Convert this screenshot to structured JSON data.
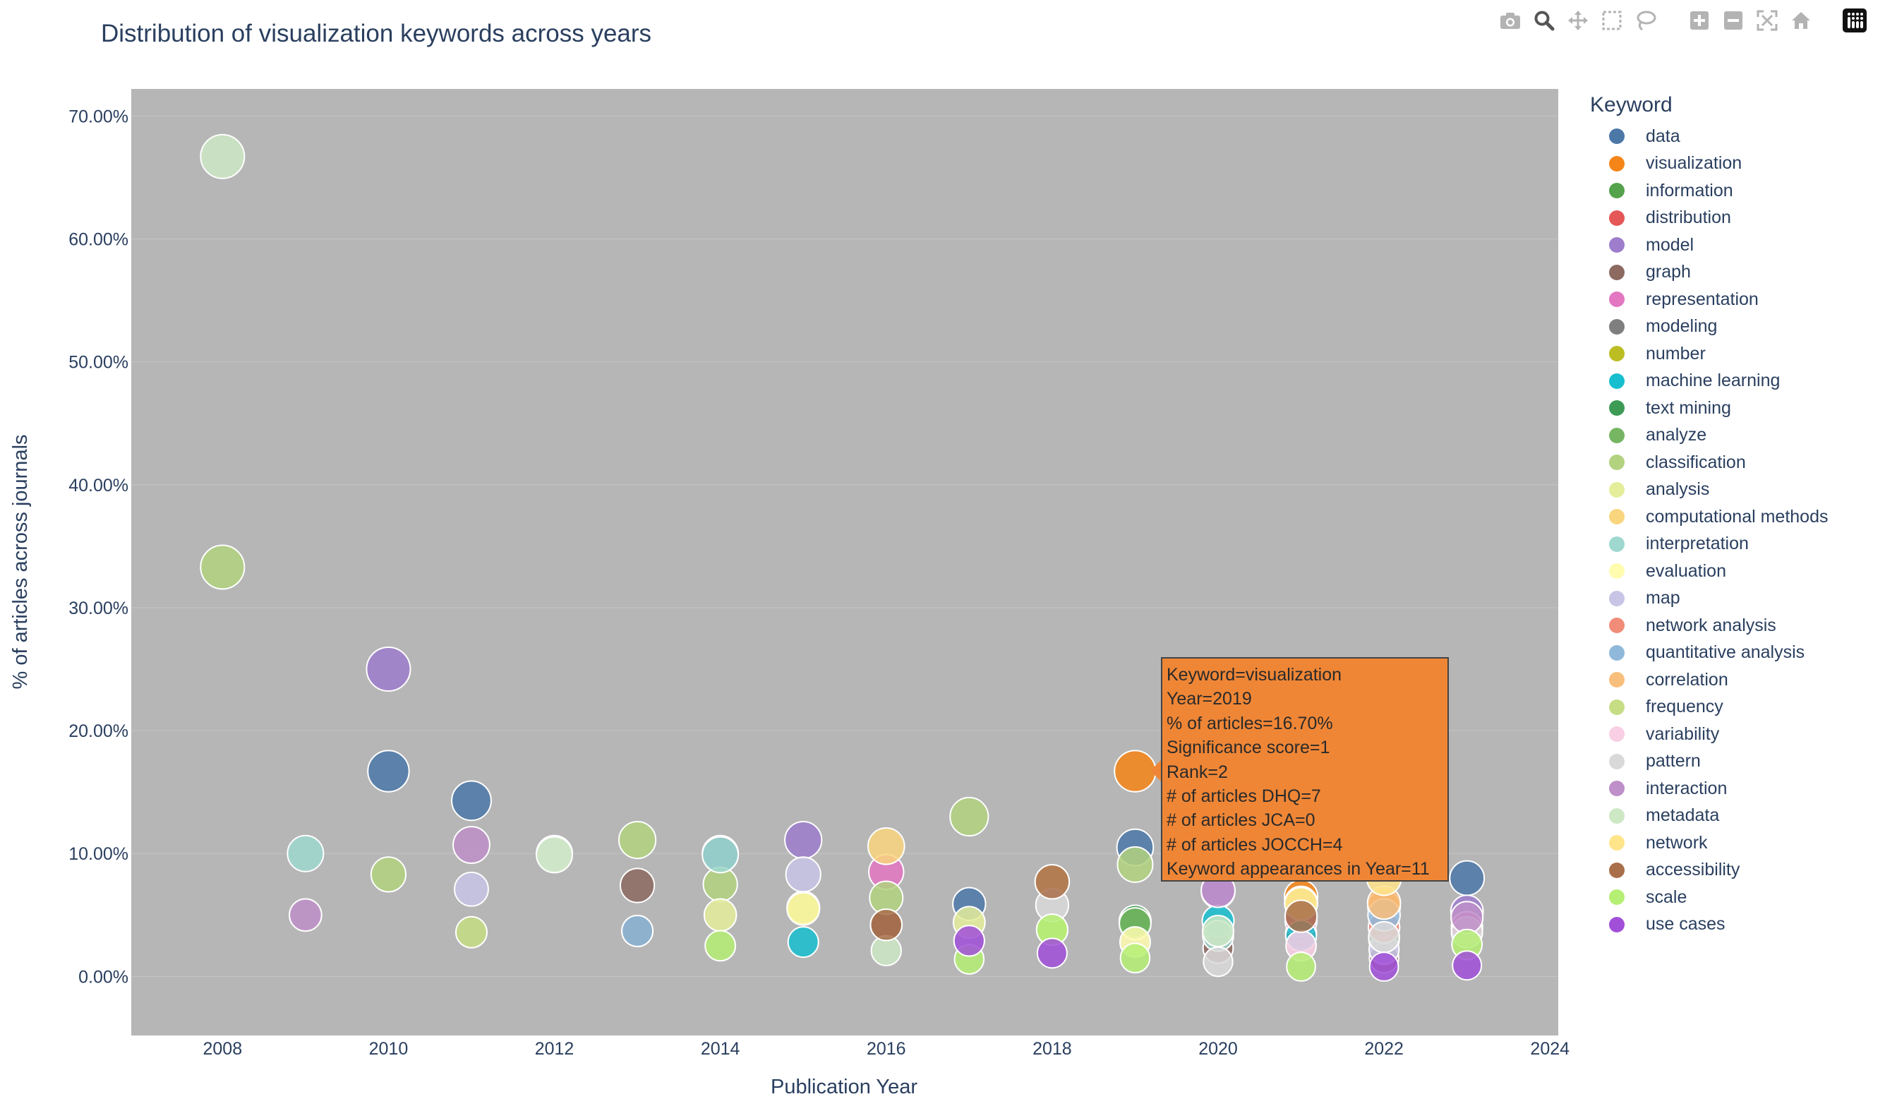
{
  "chart_data": {
    "type": "scatter",
    "title": "Distribution of visualization keywords across years",
    "xlabel": "Publication Year",
    "ylabel": "% of articles across journals",
    "xlim": [
      2006.9,
      2024.1
    ],
    "ylim": [
      -4.8,
      72.2
    ],
    "x_ticks": [
      2008,
      2010,
      2012,
      2014,
      2016,
      2018,
      2020,
      2022,
      2024
    ],
    "y_ticks": [
      0,
      10,
      20,
      30,
      40,
      50,
      60,
      70
    ],
    "y_tick_labels": [
      "0.00%",
      "10.00%",
      "20.00%",
      "30.00%",
      "40.00%",
      "50.00%",
      "60.00%",
      "70.00%"
    ],
    "plot_background": "#b6b6b6",
    "legend_title": "Keyword",
    "legend_position": "right",
    "series": [
      {
        "name": "data",
        "color": "#4c78a8",
        "points": [
          [
            2010,
            16.7
          ],
          [
            2011,
            14.3
          ],
          [
            2014,
            10.0
          ],
          [
            2017,
            5.9
          ],
          [
            2019,
            10.5
          ],
          [
            2023,
            8.0
          ]
        ]
      },
      {
        "name": "visualization",
        "color": "#f58518",
        "points": [
          [
            2019,
            16.7
          ],
          [
            2021,
            6.5
          ],
          [
            2022,
            5.7
          ]
        ]
      },
      {
        "name": "information",
        "color": "#54a24b",
        "points": [
          [
            2019,
            4.5
          ],
          [
            2022,
            3.0
          ]
        ]
      },
      {
        "name": "distribution",
        "color": "#e45756",
        "points": [
          [
            2021,
            3.5
          ]
        ]
      },
      {
        "name": "model",
        "color": "#9d7dcc",
        "points": [
          [
            2010,
            25.0
          ],
          [
            2015,
            11.1
          ],
          [
            2020,
            6.9
          ],
          [
            2023,
            5.3
          ]
        ]
      },
      {
        "name": "graph",
        "color": "#8c6a60",
        "points": [
          [
            2013,
            7.4
          ],
          [
            2016,
            4.2
          ],
          [
            2020,
            2.3
          ],
          [
            2022,
            1.5
          ]
        ]
      },
      {
        "name": "representation",
        "color": "#e377c2",
        "points": [
          [
            2016,
            8.5
          ],
          [
            2021,
            4.5
          ],
          [
            2023,
            4.0
          ]
        ]
      },
      {
        "name": "modeling",
        "color": "#7f7f7f",
        "points": [
          [
            2013,
            3.7
          ]
        ]
      },
      {
        "name": "number",
        "color": "#bcbd22",
        "points": [
          [
            2015,
            5.6
          ]
        ]
      },
      {
        "name": "machine learning",
        "color": "#17becf",
        "points": [
          [
            2015,
            2.8
          ],
          [
            2020,
            4.5
          ],
          [
            2021,
            3.3
          ]
        ]
      },
      {
        "name": "text mining",
        "color": "#3d9b55",
        "points": [
          [
            2019,
            4.5
          ]
        ]
      },
      {
        "name": "analyze",
        "color": "#76b663",
        "points": [
          [
            2019,
            4.3
          ]
        ]
      },
      {
        "name": "classification",
        "color": "#b2d27f",
        "points": [
          [
            2008,
            33.3
          ],
          [
            2010,
            8.3
          ],
          [
            2013,
            11.1
          ],
          [
            2014,
            7.5
          ],
          [
            2016,
            6.4
          ],
          [
            2017,
            13.0
          ],
          [
            2019,
            9.1
          ]
        ]
      },
      {
        "name": "analysis",
        "color": "#e4ed9a",
        "points": [
          [
            2014,
            5.0
          ],
          [
            2017,
            4.4
          ],
          [
            2021,
            6.0
          ]
        ]
      },
      {
        "name": "computational methods",
        "color": "#f9d57e",
        "points": [
          [
            2016,
            10.6
          ],
          [
            2018,
            7.7
          ]
        ]
      },
      {
        "name": "interpretation",
        "color": "#9fd8cf",
        "points": [
          [
            2009,
            10.0
          ],
          [
            2014,
            9.9
          ],
          [
            2020,
            3.3
          ]
        ]
      },
      {
        "name": "evaluation",
        "color": "#fffcb0",
        "points": [
          [
            2015,
            5.5
          ],
          [
            2019,
            2.8
          ]
        ]
      },
      {
        "name": "map",
        "color": "#c7c4e6",
        "points": [
          [
            2011,
            7.1
          ],
          [
            2015,
            8.3
          ],
          [
            2022,
            2.2
          ]
        ]
      },
      {
        "name": "network analysis",
        "color": "#f08c78",
        "points": [
          [
            2022,
            4.0
          ]
        ]
      },
      {
        "name": "quantitative analysis",
        "color": "#8fb8da",
        "points": [
          [
            2013,
            3.7
          ],
          [
            2022,
            5.0
          ]
        ]
      },
      {
        "name": "correlation",
        "color": "#f8be7c",
        "points": [
          [
            2022,
            6.0
          ]
        ]
      },
      {
        "name": "frequency",
        "color": "#c6dd84",
        "points": [
          [
            2011,
            3.6
          ],
          [
            2018,
            3.8
          ]
        ]
      },
      {
        "name": "variability",
        "color": "#f8cfe4",
        "points": [
          [
            2021,
            2.5
          ]
        ]
      },
      {
        "name": "pattern",
        "color": "#d9d9d9",
        "points": [
          [
            2012,
            10.0
          ],
          [
            2018,
            5.8
          ],
          [
            2020,
            1.2
          ],
          [
            2022,
            3.2
          ],
          [
            2023,
            3.6
          ]
        ]
      },
      {
        "name": "interaction",
        "color": "#be8fc8",
        "points": [
          [
            2009,
            5.0
          ],
          [
            2011,
            10.7
          ],
          [
            2020,
            7.0
          ],
          [
            2023,
            4.8
          ]
        ]
      },
      {
        "name": "metadata",
        "color": "#cce8c4",
        "points": [
          [
            2008,
            66.7
          ],
          [
            2012,
            9.9
          ],
          [
            2016,
            2.1
          ],
          [
            2020,
            3.7
          ]
        ]
      },
      {
        "name": "network",
        "color": "#ffe48a",
        "points": [
          [
            2021,
            5.9
          ],
          [
            2022,
            8.0
          ]
        ]
      },
      {
        "name": "accessibility",
        "color": "#a86f4a",
        "points": [
          [
            2016,
            4.2
          ],
          [
            2018,
            7.7
          ],
          [
            2021,
            4.9
          ]
        ]
      },
      {
        "name": "scale",
        "color": "#b5ef74",
        "points": [
          [
            2014,
            2.5
          ],
          [
            2017,
            1.4
          ],
          [
            2018,
            3.8
          ],
          [
            2019,
            1.5
          ],
          [
            2021,
            0.8
          ],
          [
            2023,
            2.6
          ]
        ]
      },
      {
        "name": "use cases",
        "color": "#a14fd8",
        "points": [
          [
            2017,
            2.9
          ],
          [
            2018,
            1.9
          ],
          [
            2022,
            0.8
          ],
          [
            2023,
            0.9
          ]
        ]
      }
    ],
    "hover": {
      "lines": [
        "Keyword=visualization",
        "Year=2019",
        "% of articles=16.70%",
        "Significance score=1",
        "Rank=2",
        "# of articles DHQ=7",
        "# of articles JCA=0",
        "# of articles JOCCH=4",
        "Keyword appearances in Year=11"
      ]
    }
  },
  "modebar": {
    "buttons": [
      "camera-icon",
      "zoom-icon",
      "pan-icon",
      "box-select-icon",
      "lasso-icon",
      "zoom-in-icon",
      "zoom-out-icon",
      "autoscale-icon",
      "reset-axes-icon",
      "plotly-logo-icon"
    ]
  }
}
